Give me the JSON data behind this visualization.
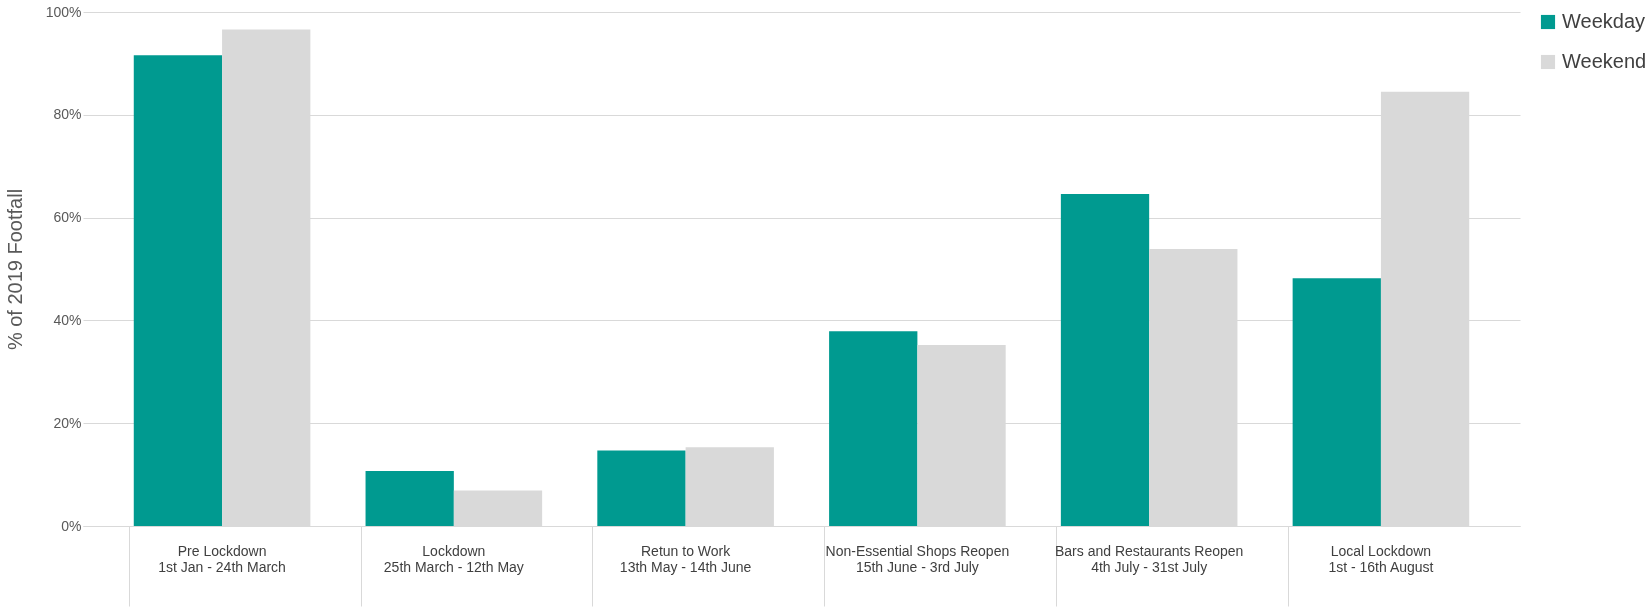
{
  "chart_data": {
    "type": "bar",
    "ylabel": "% of 2019 Footfall",
    "categories": [
      "Pre Lockdown\n1st Jan - 24th March",
      "Lockdown\n25th March - 12th May",
      "Retun to Work\n13th May - 14th June",
      "Non-Essential Shops Reopen\n15th June - 3rd July",
      "Bars and Restaurants Reopen\n4th July - 31st July",
      "Local Lockdown\n1st - 16th August"
    ],
    "series": [
      {
        "name": "Weekday",
        "color": "#009a90",
        "values": [
          91.6,
          10.7,
          14.7,
          37.9,
          64.6,
          48.2
        ]
      },
      {
        "name": "Weekend",
        "color": "#d9d9d9",
        "values": [
          96.6,
          6.9,
          15.3,
          35.2,
          53.9,
          84.5
        ]
      }
    ],
    "ylim": [
      0,
      100
    ],
    "yticks": [
      {
        "value": 0,
        "label": "0%"
      },
      {
        "value": 20,
        "label": "20%"
      },
      {
        "value": 40,
        "label": "40%"
      },
      {
        "value": 60,
        "label": "60%"
      },
      {
        "value": 80,
        "label": "80%"
      },
      {
        "value": 100,
        "label": "100%"
      }
    ],
    "grid": "y",
    "legend": "right"
  }
}
